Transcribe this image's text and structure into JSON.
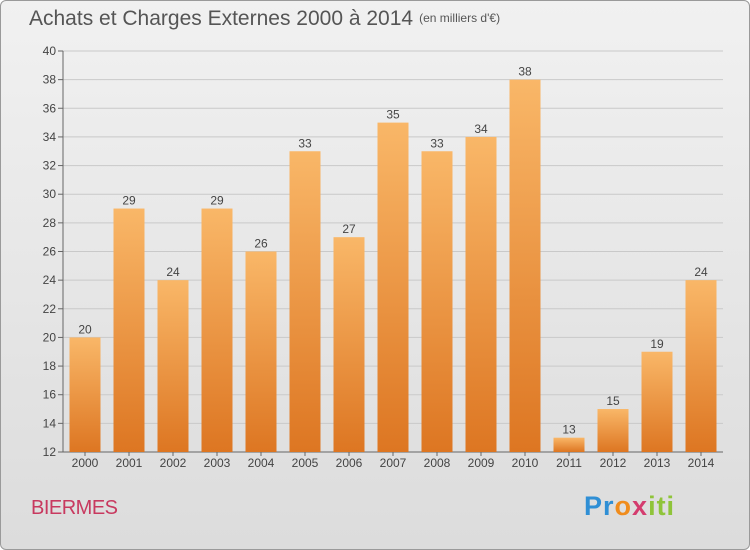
{
  "header": {
    "title": "Achats et Charges Externes 2000 à 2014",
    "unit": "(en milliers d'€)"
  },
  "place_name": "BIERMES",
  "brand": {
    "parts": [
      "Pr",
      "o",
      "x",
      "iti"
    ]
  },
  "colors": {
    "bar_light": "#f9b768",
    "bar_dark": "#dd7622",
    "title": "#555555",
    "place": "#c8395f"
  },
  "chart_data": {
    "type": "bar",
    "title": "Achats et Charges Externes 2000 à 2014",
    "subtitle": "(en milliers d'€)",
    "categories": [
      "2000",
      "2001",
      "2002",
      "2003",
      "2004",
      "2005",
      "2006",
      "2007",
      "2008",
      "2009",
      "2010",
      "2011",
      "2012",
      "2013",
      "2014"
    ],
    "values": [
      20,
      29,
      24,
      29,
      26,
      33,
      27,
      35,
      33,
      34,
      38,
      13,
      15,
      19,
      24
    ],
    "ylim": [
      12,
      40
    ],
    "yticks": [
      12,
      14,
      16,
      18,
      20,
      22,
      24,
      26,
      28,
      30,
      32,
      34,
      36,
      38,
      40
    ],
    "grid": true,
    "data_labels": true
  }
}
